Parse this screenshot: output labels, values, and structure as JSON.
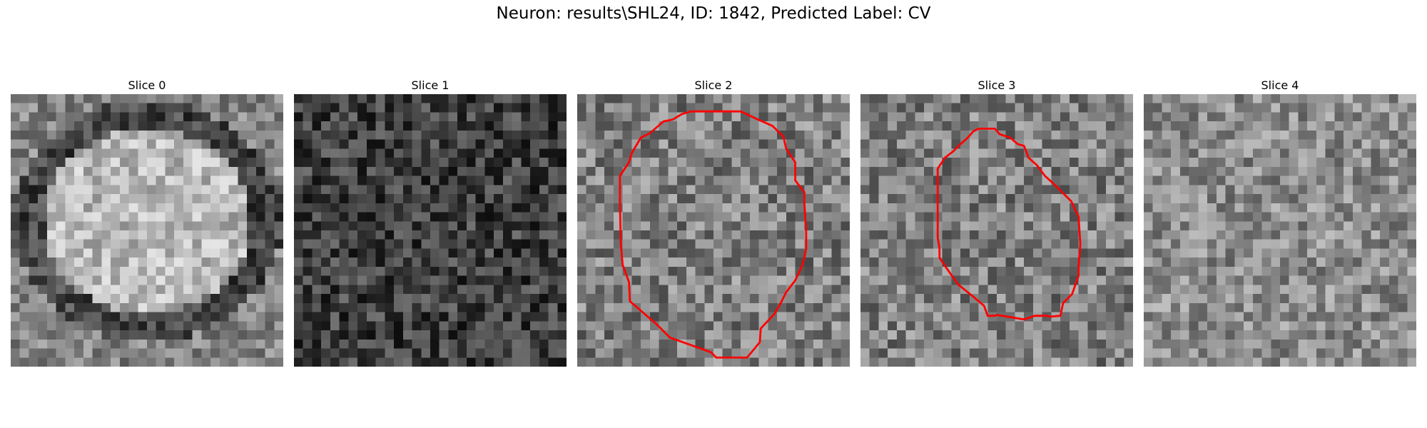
{
  "figure": {
    "title": "Neuron: results\\SHL24, ID: 1842, Predicted Label: CV",
    "grid_size": 30,
    "outline_color": "#ff0000",
    "panels": [
      {
        "title": "Slice 0",
        "seed": 11,
        "mean": 0.52,
        "contrast": 0.18,
        "ring": {
          "cx": 15,
          "cy": 14,
          "rx": 13.5,
          "ry": 12,
          "bright": 0.2,
          "dark": -0.25
        },
        "outline": []
      },
      {
        "title": "Slice 1",
        "seed": 23,
        "mean": 0.25,
        "contrast": 0.2,
        "ring": null,
        "outline": []
      },
      {
        "title": "Slice 2",
        "seed": 37,
        "mean": 0.5,
        "contrast": 0.22,
        "ring": null,
        "outline": [
          [
            12.5,
            1.9
          ],
          [
            18,
            1.9
          ],
          [
            19.7,
            2.7
          ],
          [
            21.5,
            3.5
          ],
          [
            22.7,
            4.7
          ],
          [
            23,
            6
          ],
          [
            24,
            7.5
          ],
          [
            24,
            9.5
          ],
          [
            25,
            10.8
          ],
          [
            25,
            12
          ],
          [
            25.2,
            15
          ],
          [
            25.2,
            17
          ],
          [
            25,
            18
          ],
          [
            24.7,
            19
          ],
          [
            24,
            20.5
          ],
          [
            23,
            21.8
          ],
          [
            22.4,
            23
          ],
          [
            21.7,
            24.2
          ],
          [
            20.2,
            25.8
          ],
          [
            20.1,
            27.3
          ],
          [
            18.7,
            29
          ],
          [
            15.3,
            29
          ],
          [
            14.7,
            28.4
          ],
          [
            13,
            27.8
          ],
          [
            10.2,
            26.8
          ],
          [
            8.7,
            25.3
          ],
          [
            5.8,
            22.8
          ],
          [
            5.7,
            20.7
          ],
          [
            5,
            18.8
          ],
          [
            4.8,
            16.5
          ],
          [
            4.7,
            12
          ],
          [
            4.7,
            9
          ],
          [
            5.7,
            7.5
          ],
          [
            6,
            6.5
          ],
          [
            7,
            4.8
          ],
          [
            8,
            4.3
          ],
          [
            9.5,
            3
          ],
          [
            10.5,
            2.8
          ],
          [
            11.5,
            2.2
          ],
          [
            12.5,
            1.9
          ]
        ]
      },
      {
        "title": "Slice 3",
        "seed": 53,
        "mean": 0.5,
        "contrast": 0.22,
        "ring": null,
        "outline": [
          [
            13,
            3.8
          ],
          [
            14.8,
            3.8
          ],
          [
            15.3,
            4.4
          ],
          [
            16.5,
            4.8
          ],
          [
            17.3,
            5.5
          ],
          [
            18,
            5.7
          ],
          [
            18.5,
            7
          ],
          [
            19.4,
            7.8
          ],
          [
            20.3,
            9
          ],
          [
            21.4,
            10
          ],
          [
            23.2,
            11.8
          ],
          [
            24,
            13.5
          ],
          [
            24.2,
            16.5
          ],
          [
            24,
            19
          ],
          [
            24,
            20
          ],
          [
            23.3,
            22
          ],
          [
            22.3,
            23
          ],
          [
            22,
            24.4
          ],
          [
            20.8,
            24.5
          ],
          [
            20.5,
            24.4
          ],
          [
            19.2,
            24.4
          ],
          [
            18,
            24.8
          ],
          [
            15,
            24.3
          ],
          [
            14.8,
            24.4
          ],
          [
            14,
            24.4
          ],
          [
            13.6,
            23.3
          ],
          [
            12.3,
            22.2
          ],
          [
            10.8,
            21
          ],
          [
            9.5,
            19.2
          ],
          [
            8.7,
            18
          ],
          [
            8.7,
            17
          ],
          [
            8.5,
            15.8
          ],
          [
            8.5,
            8.2
          ],
          [
            9.3,
            7
          ],
          [
            10.2,
            6.3
          ],
          [
            11,
            5.5
          ],
          [
            11.8,
            4.8
          ],
          [
            12.4,
            4.1
          ],
          [
            13,
            3.8
          ]
        ]
      },
      {
        "title": "Slice 4",
        "seed": 71,
        "mean": 0.55,
        "contrast": 0.2,
        "ring": null,
        "outline": []
      }
    ]
  }
}
